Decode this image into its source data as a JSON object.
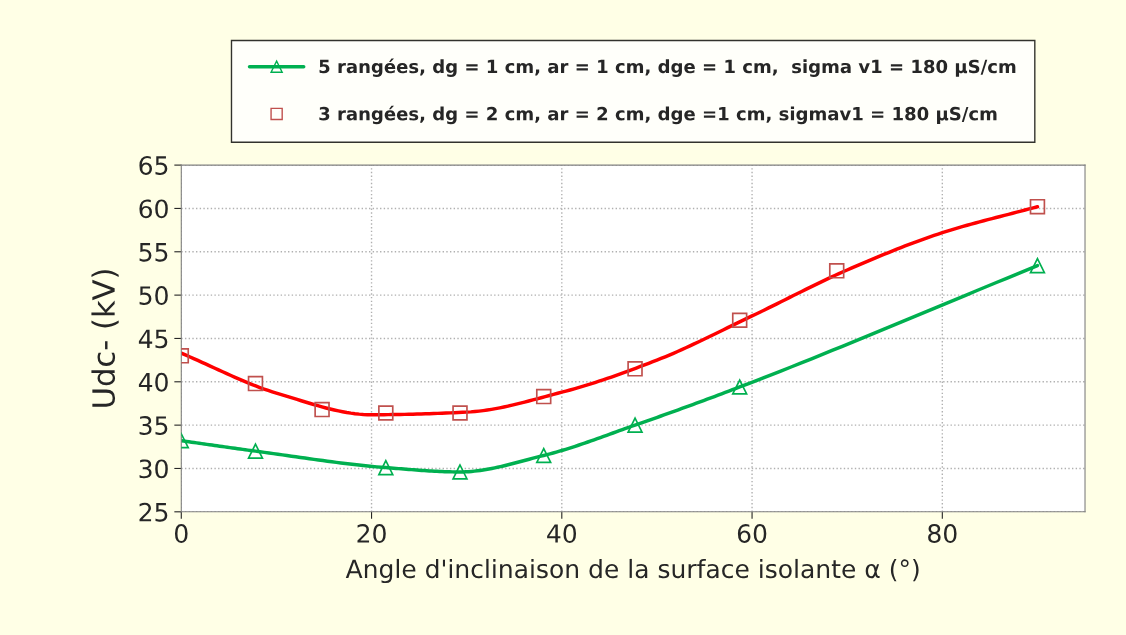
{
  "chart_data": {
    "type": "line",
    "xlabel": "Angle d'inclinaison de la surface isolante α (°)",
    "ylabel": "Udc- (kV)",
    "xlim": [
      0,
      95
    ],
    "xticks": [
      0,
      20,
      40,
      60,
      80
    ],
    "ylim": [
      25,
      65
    ],
    "yticks": [
      25,
      30,
      35,
      40,
      45,
      50,
      55,
      60,
      65
    ],
    "grid": true,
    "legend": "top",
    "series": [
      {
        "name": "5 rangées, dg = 1 cm, ar = 1 cm, dge = 1 cm,  sigma v1 = 180 µS/cm",
        "type": "line",
        "marker": "triangle",
        "color": "#00b050",
        "x": [
          0,
          7.8,
          21.5,
          29.3,
          38.1,
          47.7,
          58.7,
          90
        ],
        "values": [
          33.2,
          32.0,
          30.1,
          29.6,
          31.5,
          35.0,
          39.4,
          53.4
        ]
      },
      {
        "name": "3 rangées, dg = 2 cm, ar = 2 cm, dge =1 cm, sigmav1 = 180 µS/cm",
        "type": "scatter",
        "marker": "square",
        "color": "#c0504d",
        "x": [
          0,
          7.8,
          14.8,
          21.5,
          29.3,
          38.1,
          47.7,
          58.7,
          68.9,
          90
        ],
        "values": [
          43.0,
          39.8,
          36.8,
          36.4,
          36.4,
          38.3,
          41.5,
          47.1,
          52.8,
          60.2
        ]
      },
      {
        "marker": "none",
        "color": "#ff0000",
        "x": [
          0,
          10,
          20,
          30,
          40,
          50,
          60,
          70,
          80,
          90
        ],
        "values": [
          43.3,
          38.7,
          36.2,
          36.5,
          38.8,
          42.5,
          47.6,
          52.9,
          57.2,
          60.2
        ]
      }
    ]
  }
}
